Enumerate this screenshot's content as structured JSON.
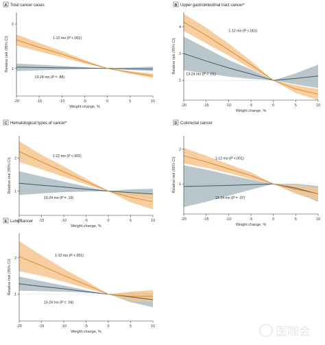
{
  "colors": {
    "early_line": "#e08a2a",
    "early_band": "#f6c58f",
    "late_line": "#3f5966",
    "late_band": "#7f97a2"
  },
  "axis_text": {
    "xlabel": "Weight change, %",
    "ylabel": "Relative risk (95% CI)"
  },
  "watermark": "医咖会",
  "chart_data": [
    {
      "type": "line",
      "letter": "A",
      "title": "Total cancer cases",
      "footnote_mark": "",
      "xlabel": "Weight change, %",
      "ylabel": "Relative risk (95% CI)",
      "xlim": [
        -20,
        10
      ],
      "xticks": [
        -20,
        -15,
        -10,
        -5,
        0,
        5,
        10
      ],
      "yscale": "log",
      "ylim": [
        0.65,
        2.4
      ],
      "yticks": [
        1,
        2
      ],
      "series": [
        {
          "name": "1-12 mo",
          "label_prefix": "1-12 mo (",
          "p_symbol": "P",
          "p_value": " <.001)",
          "x": [
            -20,
            -15,
            -10,
            -5,
            0,
            5,
            10
          ],
          "y": [
            1.56,
            1.39,
            1.25,
            1.11,
            1.0,
            0.94,
            0.89
          ],
          "lower": [
            1.43,
            1.3,
            1.19,
            1.08,
            1.0,
            0.92,
            0.86
          ],
          "upper": [
            1.7,
            1.49,
            1.31,
            1.14,
            1.0,
            0.96,
            0.92
          ],
          "label_at": [
            -12,
            1.58
          ]
        },
        {
          "name": "13-24 mo",
          "label_prefix": "13-24 mo (",
          "p_symbol": "P",
          "p_value": " = .88)",
          "x": [
            -20,
            -15,
            -10,
            -5,
            0,
            5,
            10
          ],
          "y": [
            1.02,
            1.015,
            1.01,
            1.005,
            1.0,
            0.995,
            0.99
          ],
          "lower": [
            0.96,
            0.97,
            0.98,
            0.99,
            1.0,
            0.975,
            0.96
          ],
          "upper": [
            1.08,
            1.06,
            1.04,
            1.02,
            1.0,
            1.015,
            1.03
          ],
          "label_at": [
            -16,
            0.86
          ]
        }
      ]
    },
    {
      "type": "line",
      "letter": "B",
      "title": "Upper gastrointestinal tract cancer",
      "footnote_mark": "a",
      "xlabel": "Weight change, %",
      "ylabel": "Relative risk (95% CI)",
      "xlim": [
        -20,
        10
      ],
      "xticks": [
        -20,
        -15,
        -10,
        -5,
        0,
        5,
        10
      ],
      "yscale": "log",
      "ylim": [
        0.6,
        5.8
      ],
      "yticks": [
        1,
        2,
        4
      ],
      "series": [
        {
          "name": "1-12 mo",
          "label_prefix": "1-12 mo (",
          "p_symbol": "P",
          "p_value": " <.001)",
          "x": [
            -20,
            -15,
            -10,
            -5,
            0,
            5,
            10
          ],
          "y": [
            4.5,
            3.2,
            2.2,
            1.5,
            1.0,
            0.8,
            0.7
          ],
          "lower": [
            3.6,
            2.6,
            1.9,
            1.35,
            1.0,
            0.72,
            0.6
          ],
          "upper": [
            5.6,
            3.9,
            2.6,
            1.65,
            1.0,
            0.88,
            0.8
          ],
          "label_at": [
            -10,
            3.5
          ]
        },
        {
          "name": "13-24 mo",
          "label_prefix": "13-24 mo (",
          "p_symbol": "P",
          "p_value": " = .01)",
          "x": [
            -20,
            -15,
            -10,
            -5,
            0,
            5,
            10
          ],
          "y": [
            2.0,
            1.65,
            1.38,
            1.18,
            1.0,
            1.05,
            1.12
          ],
          "lower": [
            1.3,
            1.2,
            1.1,
            1.04,
            1.0,
            0.9,
            0.82
          ],
          "upper": [
            3.1,
            2.3,
            1.7,
            1.33,
            1.0,
            1.2,
            1.5
          ],
          "label_at": [
            -19.5,
            1.15
          ]
        }
      ]
    },
    {
      "type": "line",
      "letter": "C",
      "title": "Hematological types of cancer",
      "footnote_mark": "b",
      "xlabel": "Weight change, %",
      "ylabel": "Relative risk (95% CI)",
      "xlim": [
        -20,
        10
      ],
      "xticks": [
        -20,
        -15,
        -10,
        -5,
        0,
        5,
        10
      ],
      "yscale": "log",
      "ylim": [
        0.6,
        3.2
      ],
      "yticks": [
        1,
        2
      ],
      "series": [
        {
          "name": "1-12 mo",
          "label_prefix": "1-12 mo (",
          "p_symbol": "P",
          "p_value": " <.001)",
          "x": [
            -20,
            -15,
            -10,
            -5,
            0,
            5,
            10
          ],
          "y": [
            2.3,
            1.85,
            1.5,
            1.22,
            1.0,
            0.88,
            0.8
          ],
          "lower": [
            1.85,
            1.58,
            1.35,
            1.15,
            1.0,
            0.79,
            0.68
          ],
          "upper": [
            2.85,
            2.15,
            1.68,
            1.3,
            1.0,
            0.98,
            0.95
          ],
          "label_at": [
            -12.5,
            2.05
          ]
        },
        {
          "name": "13-24 mo",
          "label_prefix": "13-24 mo (",
          "p_symbol": "P",
          "p_value": " = .19)",
          "x": [
            -20,
            -15,
            -10,
            -5,
            0,
            5,
            10
          ],
          "y": [
            1.18,
            1.13,
            1.09,
            1.04,
            1.0,
            0.97,
            0.94
          ],
          "lower": [
            0.92,
            0.95,
            0.98,
            0.99,
            1.0,
            0.91,
            0.85
          ],
          "upper": [
            1.52,
            1.36,
            1.22,
            1.1,
            1.0,
            1.04,
            1.05
          ],
          "label_at": [
            -14.5,
            0.85
          ]
        }
      ]
    },
    {
      "type": "line",
      "letter": "D",
      "title": "Colorectal cancer",
      "footnote_mark": "",
      "xlabel": "Weight change, %",
      "ylabel": "Relative risk (95% CI)",
      "xlim": [
        -20,
        10
      ],
      "xticks": [
        -20,
        -15,
        -10,
        -5,
        0,
        5,
        10
      ],
      "yscale": "log",
      "ylim": [
        0.55,
        2.6
      ],
      "yticks": [
        1,
        2
      ],
      "series": [
        {
          "name": "1-12 mo",
          "label_prefix": "1-12 mo (",
          "p_symbol": "P",
          "p_value": " <.001)",
          "x": [
            -20,
            -15,
            -10,
            -5,
            0,
            5,
            10
          ],
          "y": [
            1.75,
            1.55,
            1.35,
            1.18,
            1.0,
            0.9,
            0.82
          ],
          "lower": [
            1.5,
            1.38,
            1.24,
            1.1,
            1.0,
            0.82,
            0.72
          ],
          "upper": [
            2.05,
            1.75,
            1.48,
            1.26,
            1.0,
            0.98,
            0.93
          ],
          "label_at": [
            -13,
            1.62
          ]
        },
        {
          "name": "13-24 mo",
          "label_prefix": "13-24 mo (",
          "p_symbol": "P",
          "p_value": " = .07)",
          "x": [
            -20,
            -15,
            -10,
            -5,
            0,
            5,
            10
          ],
          "y": [
            0.95,
            0.96,
            0.97,
            0.985,
            1.0,
            0.92,
            0.82
          ],
          "lower": [
            0.63,
            0.7,
            0.79,
            0.89,
            1.0,
            0.84,
            0.7
          ],
          "upper": [
            1.45,
            1.33,
            1.2,
            1.09,
            1.0,
            1.0,
            0.96
          ],
          "label_at": [
            -13,
            0.74
          ]
        }
      ]
    },
    {
      "type": "line",
      "letter": "E",
      "title": "Lung cancer",
      "footnote_mark": "",
      "xlabel": "Weight change, %",
      "ylabel": "Relative risk (95% CI)",
      "xlim": [
        -20,
        10
      ],
      "xticks": [
        -20,
        -15,
        -10,
        -5,
        0,
        5,
        10
      ],
      "yscale": "log",
      "ylim": [
        0.6,
        3.2
      ],
      "yticks": [
        1,
        2
      ],
      "series": [
        {
          "name": "1-12 mo",
          "label_prefix": "1-12 mo (",
          "p_symbol": "P",
          "p_value": " <.001)",
          "x": [
            -20,
            -15,
            -10,
            -5,
            0,
            5,
            10
          ],
          "y": [
            2.05,
            1.72,
            1.43,
            1.2,
            1.0,
            0.96,
            0.96
          ],
          "lower": [
            1.55,
            1.42,
            1.27,
            1.12,
            1.0,
            0.88,
            0.86
          ],
          "upper": [
            2.75,
            2.1,
            1.62,
            1.29,
            1.0,
            1.05,
            1.08
          ],
          "label_at": [
            -12,
            2.05
          ]
        },
        {
          "name": "13-24 mo",
          "label_prefix": "13-24 mo (",
          "p_symbol": "P",
          "p_value": " = .04)",
          "x": [
            -20,
            -15,
            -10,
            -5,
            0,
            5,
            10
          ],
          "y": [
            1.22,
            1.16,
            1.11,
            1.05,
            1.0,
            0.95,
            0.9
          ],
          "lower": [
            1.07,
            1.06,
            1.05,
            1.03,
            1.0,
            0.86,
            0.78
          ],
          "upper": [
            1.4,
            1.28,
            1.18,
            1.08,
            1.0,
            1.04,
            1.02
          ],
          "label_at": [
            -14.5,
            0.84
          ]
        }
      ]
    }
  ]
}
